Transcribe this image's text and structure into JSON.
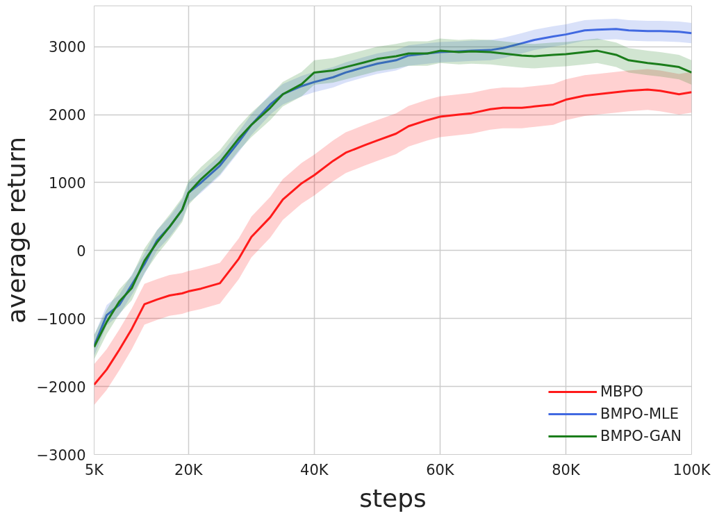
{
  "chart_data": {
    "type": "line",
    "xlabel": "steps",
    "ylabel": "average return",
    "x": [
      5000,
      7000,
      9000,
      11000,
      13000,
      15000,
      17000,
      19000,
      20000,
      22000,
      25000,
      28000,
      30000,
      33000,
      35000,
      38000,
      40000,
      43000,
      45000,
      48000,
      50000,
      53000,
      55000,
      58000,
      60000,
      63000,
      65000,
      68000,
      70000,
      73000,
      75000,
      78000,
      80000,
      83000,
      85000,
      88000,
      90000,
      93000,
      95000,
      98000,
      100000
    ],
    "series": [
      {
        "name": "MBPO",
        "color": "#ff1a1a",
        "values": [
          -1973,
          -1750,
          -1460,
          -1150,
          -790,
          -720,
          -660,
          -630,
          -600,
          -560,
          -480,
          -120,
          200,
          490,
          750,
          990,
          1110,
          1320,
          1440,
          1550,
          1620,
          1720,
          1830,
          1920,
          1970,
          2000,
          2020,
          2080,
          2100,
          2100,
          2120,
          2150,
          2220,
          2280,
          2300,
          2330,
          2350,
          2370,
          2350,
          2300,
          2330
        ],
        "lower": [
          -2273,
          -2050,
          -1760,
          -1450,
          -1090,
          -1020,
          -960,
          -930,
          -900,
          -860,
          -780,
          -420,
          -100,
          190,
          450,
          690,
          810,
          1020,
          1140,
          1250,
          1320,
          1420,
          1530,
          1620,
          1670,
          1700,
          1720,
          1780,
          1800,
          1800,
          1820,
          1850,
          1920,
          1980,
          2000,
          2030,
          2050,
          2070,
          2050,
          2000,
          2030
        ],
        "upper": [
          -1673,
          -1450,
          -1160,
          -850,
          -490,
          -420,
          -360,
          -330,
          -300,
          -260,
          -180,
          180,
          500,
          790,
          1050,
          1290,
          1410,
          1620,
          1740,
          1850,
          1920,
          2020,
          2130,
          2220,
          2270,
          2300,
          2320,
          2380,
          2400,
          2400,
          2420,
          2450,
          2520,
          2580,
          2600,
          2630,
          2650,
          2670,
          2650,
          2600,
          2630
        ]
      },
      {
        "name": "BMPO-MLE",
        "color": "#4169e1",
        "values": [
          -1400,
          -950,
          -800,
          -500,
          -200,
          150,
          350,
          600,
          850,
          1000,
          1250,
          1600,
          1850,
          2150,
          2300,
          2420,
          2480,
          2550,
          2620,
          2700,
          2750,
          2800,
          2870,
          2900,
          2920,
          2930,
          2940,
          2950,
          2980,
          3050,
          3100,
          3150,
          3180,
          3240,
          3250,
          3260,
          3240,
          3230,
          3230,
          3220,
          3200
        ],
        "lower": [
          -1550,
          -1100,
          -950,
          -650,
          -350,
          0,
          200,
          450,
          700,
          850,
          1100,
          1450,
          1700,
          2000,
          2150,
          2270,
          2330,
          2400,
          2470,
          2550,
          2600,
          2650,
          2720,
          2750,
          2770,
          2780,
          2790,
          2800,
          2830,
          2900,
          2950,
          3000,
          3030,
          3090,
          3100,
          3110,
          3090,
          3080,
          3080,
          3070,
          3050
        ],
        "upper": [
          -1250,
          -800,
          -650,
          -350,
          -50,
          300,
          500,
          750,
          1000,
          1150,
          1400,
          1750,
          2000,
          2300,
          2450,
          2570,
          2630,
          2700,
          2770,
          2850,
          2900,
          2950,
          3020,
          3050,
          3070,
          3080,
          3090,
          3100,
          3130,
          3200,
          3250,
          3300,
          3330,
          3390,
          3400,
          3410,
          3390,
          3380,
          3380,
          3370,
          3350
        ]
      },
      {
        "name": "BMPO-GAN",
        "color": "#1b7d1b",
        "values": [
          -1420,
          -1050,
          -750,
          -550,
          -150,
          120,
          350,
          600,
          850,
          1050,
          1300,
          1650,
          1850,
          2100,
          2300,
          2450,
          2620,
          2650,
          2700,
          2770,
          2820,
          2860,
          2900,
          2900,
          2940,
          2920,
          2930,
          2920,
          2900,
          2870,
          2860,
          2880,
          2890,
          2920,
          2940,
          2880,
          2800,
          2760,
          2740,
          2700,
          2620
        ],
        "lower": [
          -1600,
          -1230,
          -930,
          -730,
          -330,
          -60,
          170,
          420,
          670,
          870,
          1120,
          1470,
          1670,
          1920,
          2120,
          2270,
          2440,
          2470,
          2520,
          2590,
          2640,
          2680,
          2720,
          2720,
          2760,
          2740,
          2750,
          2740,
          2720,
          2690,
          2680,
          2700,
          2710,
          2740,
          2760,
          2700,
          2620,
          2580,
          2560,
          2520,
          2440
        ],
        "upper": [
          -1240,
          -870,
          -570,
          -370,
          30,
          300,
          530,
          780,
          1030,
          1230,
          1480,
          1830,
          2030,
          2280,
          2480,
          2630,
          2800,
          2830,
          2880,
          2950,
          3000,
          3040,
          3080,
          3080,
          3120,
          3100,
          3110,
          3100,
          3080,
          3050,
          3040,
          3060,
          3070,
          3100,
          3120,
          3060,
          2980,
          2940,
          2920,
          2880,
          2800
        ]
      }
    ],
    "xlim": [
      5000,
      100000
    ],
    "ylim": [
      -3000,
      3600
    ],
    "xticks": [
      {
        "value": 5000,
        "label": "5K"
      },
      {
        "value": 20000,
        "label": "20K"
      },
      {
        "value": 40000,
        "label": "40K"
      },
      {
        "value": 60000,
        "label": "60K"
      },
      {
        "value": 80000,
        "label": "80K"
      },
      {
        "value": 100000,
        "label": "100K"
      }
    ],
    "yticks": [
      -3000,
      -2000,
      -1000,
      0,
      1000,
      2000,
      3000
    ],
    "grid": true,
    "legend": "bottom right",
    "line_style": "solid",
    "marker": "none"
  }
}
